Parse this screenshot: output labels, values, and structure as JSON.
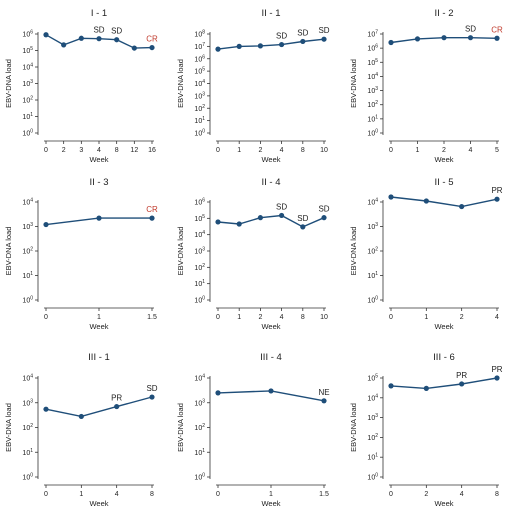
{
  "colors": {
    "line": "#1f4e79",
    "marker": "#1f4e79",
    "axis": "#333333",
    "annotation_default": "#222222",
    "annotation_highlight": "#c0392b"
  },
  "chart_data": [
    {
      "type": "line",
      "title": "I - 1",
      "xlabel": "Week",
      "ylabel": "EBV-DNA load",
      "categories": [
        "0",
        "2",
        "3",
        "4",
        "8",
        "12",
        "16"
      ],
      "values": [
        900000,
        220000,
        550000,
        520000,
        450000,
        140000,
        150000
      ],
      "y_scale": "log",
      "ylim_exp": [
        0,
        6
      ],
      "annotations": [
        {
          "index": 3,
          "text": "SD",
          "color": "#222222"
        },
        {
          "index": 4,
          "text": "SD",
          "color": "#222222"
        },
        {
          "index": 6,
          "text": "CR",
          "color": "#c0392b"
        }
      ]
    },
    {
      "type": "line",
      "title": "II - 1",
      "xlabel": "Week",
      "ylabel": "EBV-DNA load",
      "categories": [
        "0",
        "1",
        "2",
        "4",
        "8",
        "10"
      ],
      "values": [
        6000000,
        10000000,
        11000000,
        14000000,
        25000000,
        38000000
      ],
      "y_scale": "log",
      "ylim_exp": [
        0,
        8
      ],
      "annotations": [
        {
          "index": 3,
          "text": "SD",
          "color": "#222222"
        },
        {
          "index": 4,
          "text": "SD",
          "color": "#222222"
        },
        {
          "index": 5,
          "text": "SD",
          "color": "#222222"
        }
      ]
    },
    {
      "type": "line",
      "title": "II - 2",
      "xlabel": "Week",
      "ylabel": "EBV-DNA load",
      "categories": [
        "0",
        "1",
        "2",
        "4",
        "5"
      ],
      "values": [
        2500000,
        4500000,
        5500000,
        5500000,
        5000000
      ],
      "y_scale": "log",
      "ylim_exp": [
        0,
        7
      ],
      "annotations": [
        {
          "index": 3,
          "text": "SD",
          "color": "#222222"
        },
        {
          "index": 4,
          "text": "CR",
          "color": "#c0392b"
        }
      ]
    },
    {
      "type": "line",
      "title": "II - 3",
      "xlabel": "Week",
      "ylabel": "EBV-DNA load",
      "categories": [
        "0",
        "1",
        "1.5"
      ],
      "values": [
        1200,
        2200,
        2200
      ],
      "y_scale": "log",
      "ylim_exp": [
        0,
        4
      ],
      "annotations": [
        {
          "index": 2,
          "text": "CR",
          "color": "#c0392b"
        }
      ]
    },
    {
      "type": "line",
      "title": "II - 4",
      "xlabel": "Week",
      "ylabel": "EBV-DNA load",
      "categories": [
        "0",
        "1",
        "2",
        "4",
        "8",
        "10"
      ],
      "values": [
        60000,
        45000,
        110000,
        150000,
        30000,
        110000
      ],
      "y_scale": "log",
      "ylim_exp": [
        0,
        6
      ],
      "annotations": [
        {
          "index": 3,
          "text": "SD",
          "color": "#222222"
        },
        {
          "index": 4,
          "text": "SD",
          "color": "#222222"
        },
        {
          "index": 5,
          "text": "SD",
          "color": "#222222"
        }
      ]
    },
    {
      "type": "line",
      "title": "II - 5",
      "xlabel": "Week",
      "ylabel": "EBV-DNA load",
      "categories": [
        "0",
        "1",
        "2",
        "4"
      ],
      "values": [
        16000,
        11000,
        6500,
        13000
      ],
      "y_scale": "log",
      "ylim_exp": [
        0,
        4
      ],
      "annotations": [
        {
          "index": 3,
          "text": "PR",
          "color": "#222222"
        }
      ]
    },
    {
      "type": "line",
      "title": "III - 1",
      "xlabel": "Week",
      "ylabel": "EBV-DNA load",
      "categories": [
        "0",
        "1",
        "4",
        "8"
      ],
      "values": [
        550,
        280,
        700,
        1700
      ],
      "y_scale": "log",
      "ylim_exp": [
        0,
        4
      ],
      "annotations": [
        {
          "index": 2,
          "text": "PR",
          "color": "#222222"
        },
        {
          "index": 3,
          "text": "SD",
          "color": "#222222"
        }
      ]
    },
    {
      "type": "line",
      "title": "III - 4",
      "xlabel": "Week",
      "ylabel": "EBV-DNA load",
      "categories": [
        "0",
        "1",
        "1.5"
      ],
      "values": [
        2500,
        3000,
        1200
      ],
      "y_scale": "log",
      "ylim_exp": [
        0,
        4
      ],
      "annotations": [
        {
          "index": 2,
          "text": "NE",
          "color": "#222222"
        }
      ]
    },
    {
      "type": "line",
      "title": "III - 6",
      "xlabel": "Week",
      "ylabel": "EBV-DNA load",
      "categories": [
        "0",
        "2",
        "4",
        "8"
      ],
      "values": [
        40000,
        30000,
        50000,
        100000
      ],
      "y_scale": "log",
      "ylim_exp": [
        0,
        5
      ],
      "annotations": [
        {
          "index": 2,
          "text": "PR",
          "color": "#222222"
        },
        {
          "index": 3,
          "text": "PR",
          "color": "#222222"
        }
      ]
    }
  ]
}
